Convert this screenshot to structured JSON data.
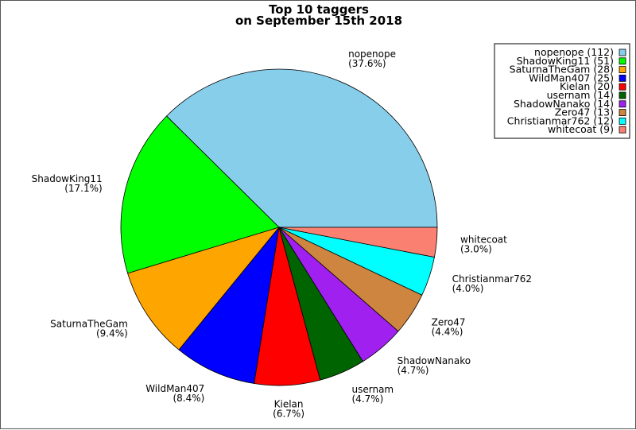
{
  "chart_data": {
    "type": "pie",
    "title": [
      "Top 10 taggers",
      "on September 15th 2018"
    ],
    "slices": [
      {
        "name": "nopenope",
        "value": 112,
        "pct": "(37.6%)",
        "color": "#87ceeb"
      },
      {
        "name": "ShadowKing11",
        "value": 51,
        "pct": "(17.1%)",
        "color": "#00ff00"
      },
      {
        "name": "SaturnaTheGam",
        "value": 28,
        "pct": "(9.4%)",
        "color": "#ffa500"
      },
      {
        "name": "WildMan407",
        "value": 25,
        "pct": "(8.4%)",
        "color": "#0000ff"
      },
      {
        "name": "Kielan",
        "value": 20,
        "pct": "(6.7%)",
        "color": "#ff0000"
      },
      {
        "name": "usernam",
        "value": 14,
        "pct": "(4.7%)",
        "color": "#006400"
      },
      {
        "name": "ShadowNanako",
        "value": 14,
        "pct": "(4.7%)",
        "color": "#a020f0"
      },
      {
        "name": "Zero47",
        "value": 13,
        "pct": "(4.4%)",
        "color": "#cd853f"
      },
      {
        "name": "Christianmar762",
        "value": 12,
        "pct": "(4.0%)",
        "color": "#00ffff"
      },
      {
        "name": "whitecoat",
        "value": 9,
        "pct": "(3.0%)",
        "color": "#fa8072"
      }
    ],
    "legend": {
      "placement": "top-right",
      "entries": [
        "nopenope (112)",
        "ShadowKing11 (51)",
        "SaturnaTheGam (28)",
        "WildMan407 (25)",
        "Kielan (20)",
        "usernam (14)",
        "ShadowNanako (14)",
        "Zero47 (13)",
        "Christianmar762 (12)",
        "whitecoat (9)"
      ]
    }
  }
}
